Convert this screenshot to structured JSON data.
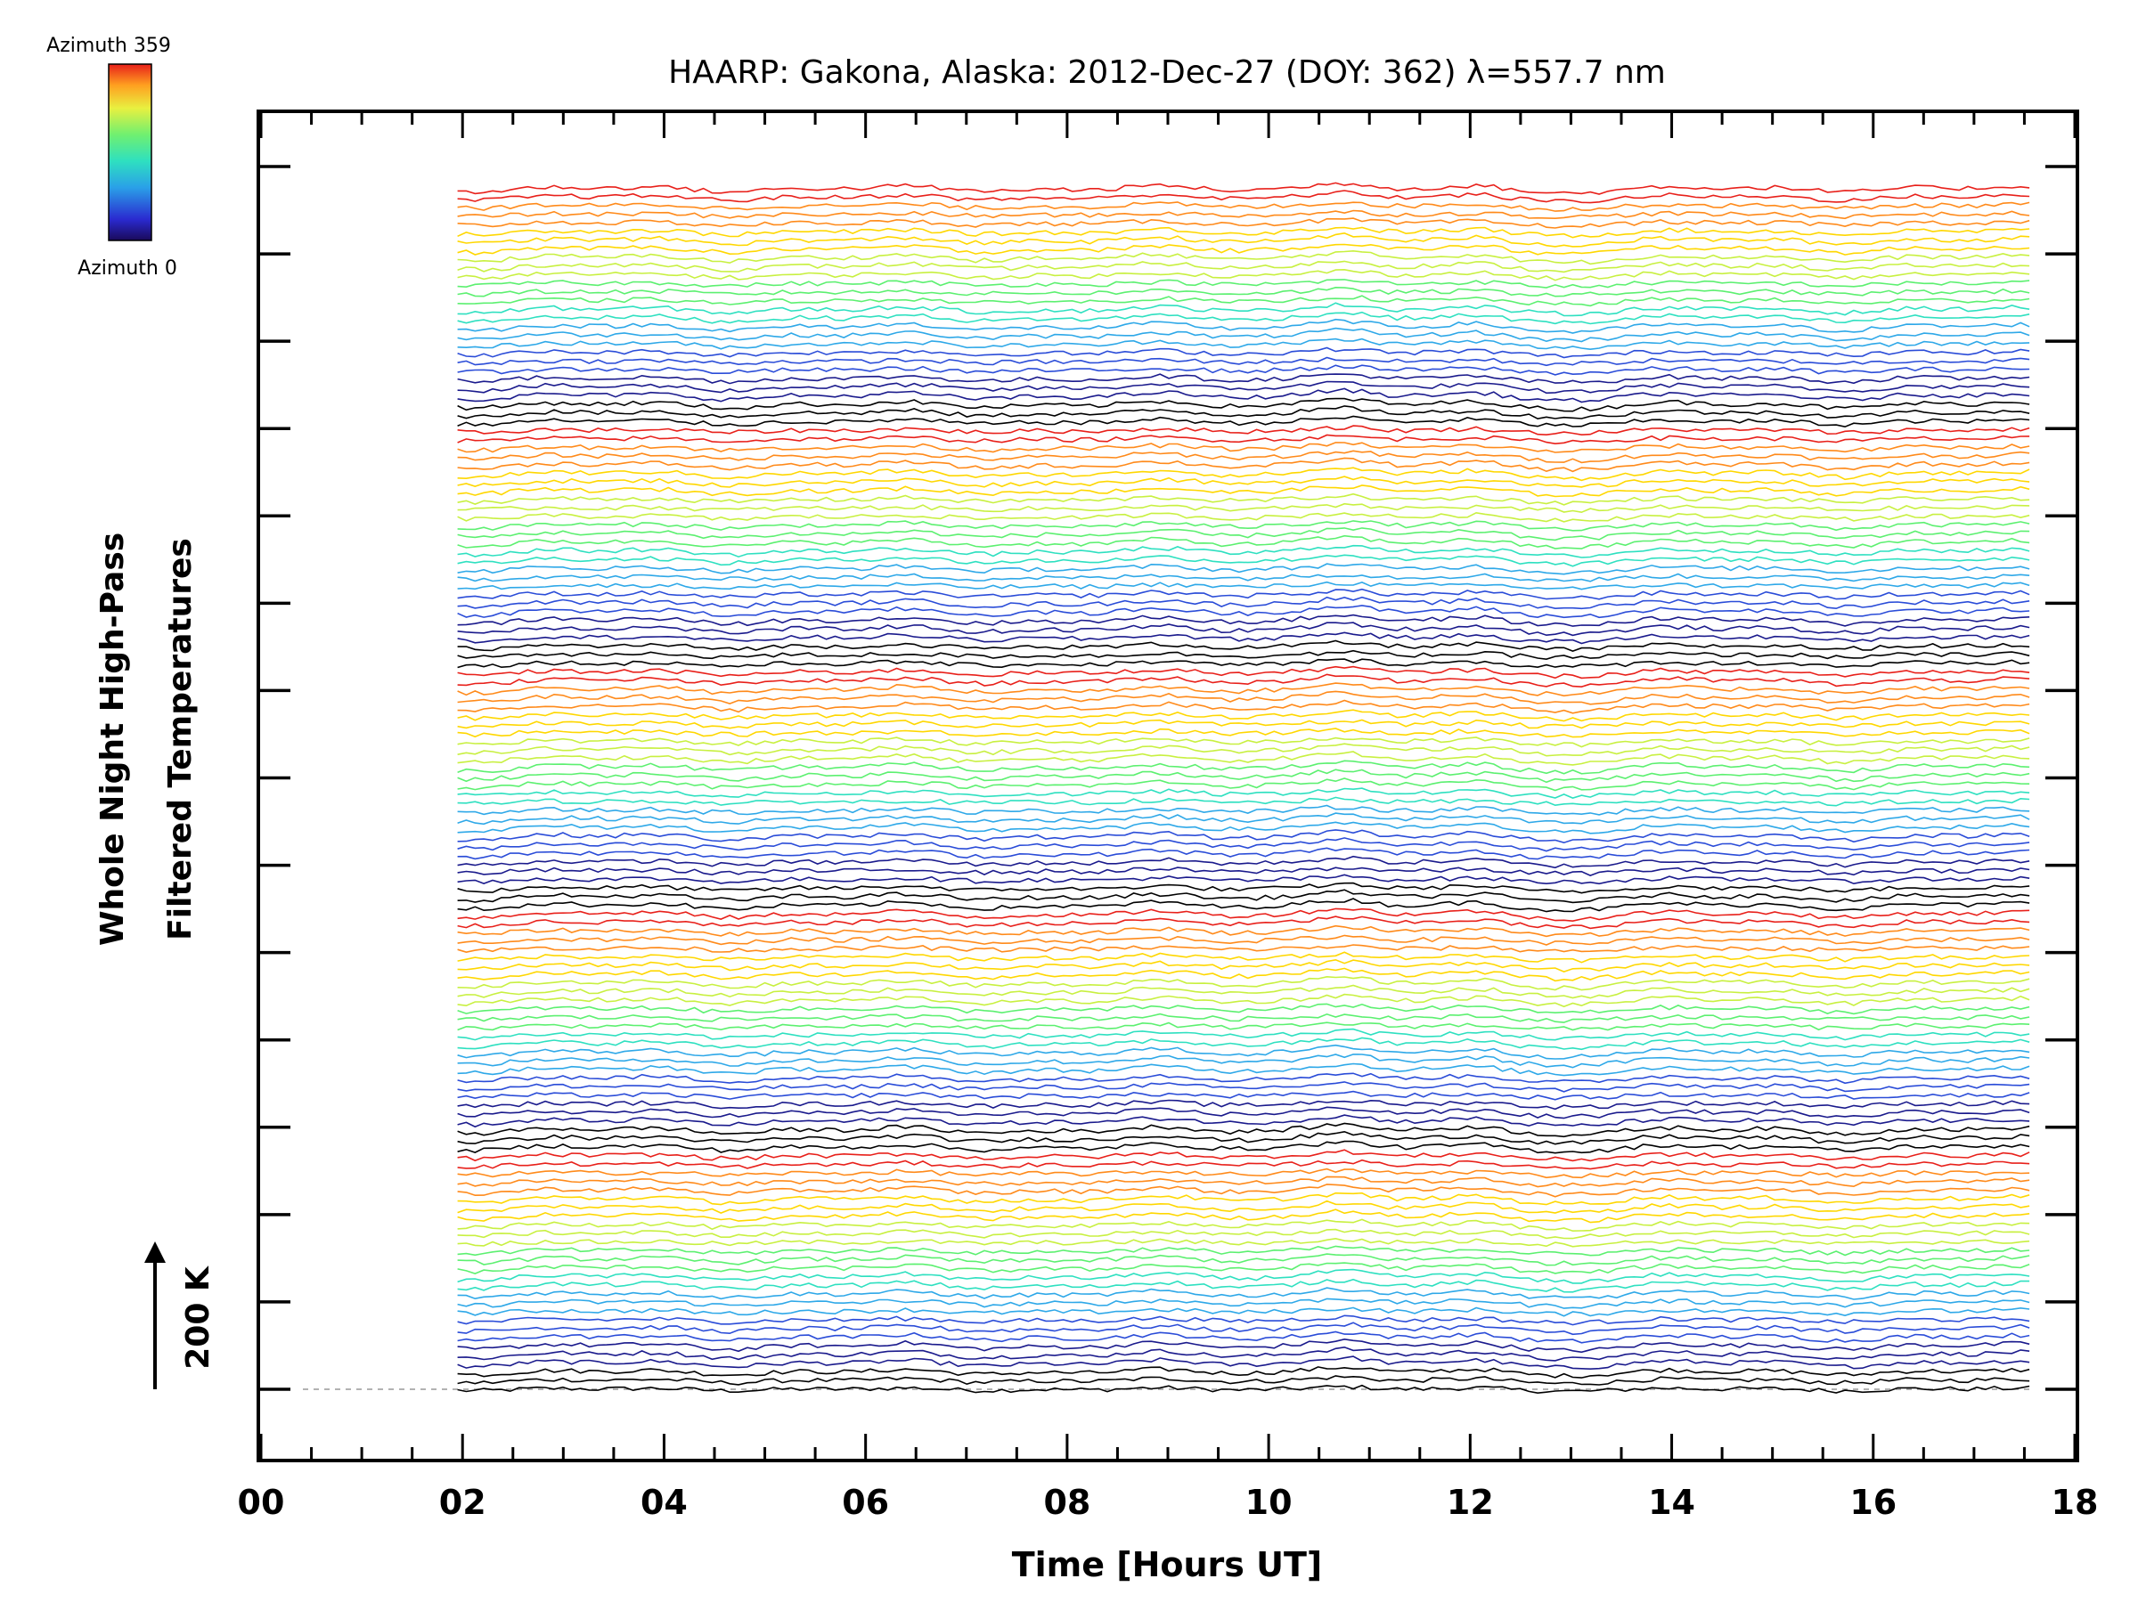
{
  "chart_data": {
    "type": "line",
    "title": "HAARP: Gakona,  Alaska: 2012-Dec-27 (DOY: 362) λ=557.7 nm",
    "xlabel": "Time [Hours UT]",
    "ylabel_line1": "Whole Night High-Pass",
    "ylabel_line2": "Filtered Temperatures",
    "xlim": [
      0,
      18
    ],
    "x_ticks": [
      "00",
      "02",
      "04",
      "06",
      "08",
      "10",
      "12",
      "14",
      "16",
      "18"
    ],
    "x_tick_values": [
      0,
      2,
      4,
      6,
      8,
      10,
      12,
      14,
      16,
      18
    ],
    "x_minor_step": 0.5,
    "ylim_traces": [
      0,
      140
    ],
    "y_major_ticks_count": 15,
    "scale_bar": {
      "label": "200 K"
    },
    "colorbar": {
      "top_label": "Azimuth 359",
      "bottom_label": "Azimuth 0",
      "colormap": "rainbow",
      "colors": [
        "#000000",
        "#1a1a8c",
        "#2a4cd8",
        "#2ea8e8",
        "#2ee0c0",
        "#5cf070",
        "#c8f040",
        "#ffd700",
        "#ff8a1a",
        "#e8201a"
      ]
    },
    "series_summary": {
      "count": 140,
      "time_start_hours": 1.95,
      "time_end_hours": 17.55,
      "sample_count": 180,
      "bands": 5,
      "traces_per_band": 28,
      "band_color_order": "azimuth 0 (black) at bottom of band through blue, cyan, green, yellow, orange, red at top",
      "common_feature": "upward bump near 10.8 h UT in all traces"
    },
    "baseline": {
      "style": "dashed",
      "color": "#999999"
    }
  }
}
